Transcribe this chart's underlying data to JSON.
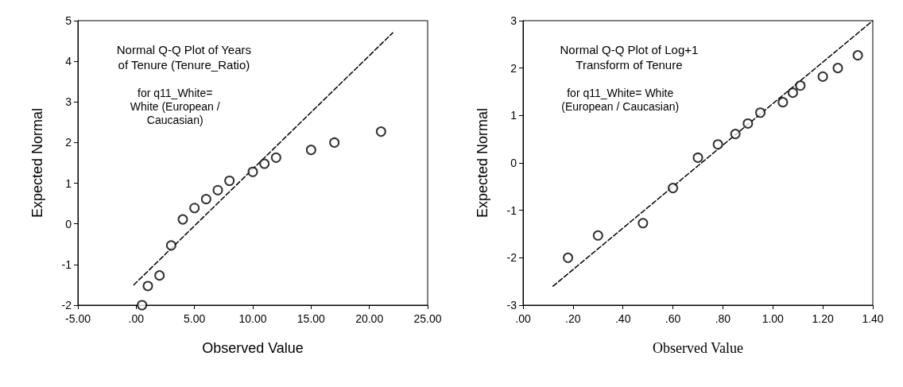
{
  "chart_data": [
    {
      "type": "scatter",
      "title": "Normal Q-Q Plot of Years\nof Tenure (Tenure_Ratio)",
      "subtitle": "for q11_White=\nWhite (European /\nCaucasian)",
      "xlabel": "Observed Value",
      "ylabel": "Expected Normal",
      "xlim": [
        -5,
        25
      ],
      "xticks": [
        {
          "value": -5,
          "label": "-5.00"
        },
        {
          "value": 0,
          "label": ".00"
        },
        {
          "value": 5,
          "label": "5.00"
        },
        {
          "value": 10,
          "label": "10.00"
        },
        {
          "value": 15,
          "label": "15.00"
        },
        {
          "value": 20,
          "label": "20.00"
        },
        {
          "value": 25,
          "label": "25.00"
        }
      ],
      "ylim": [
        -2,
        5
      ],
      "yticks": [
        -2,
        -1,
        0,
        1,
        2,
        3,
        4,
        5
      ],
      "grid": false,
      "marker": "circle",
      "series": [
        {
          "color": "#000000",
          "x": [
            0.5,
            1,
            2,
            3,
            4,
            5,
            6,
            7,
            8,
            10,
            11,
            12,
            15,
            17,
            21
          ],
          "values": [
            -2,
            -1.53,
            -1.27,
            -0.53,
            0.11,
            0.39,
            0.61,
            0.83,
            1.06,
            1.28,
            1.48,
            1.63,
            1.82,
            2,
            2.27
          ]
        },
        {
          "type": "line",
          "color": "#000000",
          "line_style": "dashed",
          "marker": "none",
          "x": [
            -0.2,
            22
          ],
          "values": [
            -1.5,
            4.7
          ]
        }
      ]
    },
    {
      "type": "scatter",
      "title": "Normal Q-Q Plot of Log+1\nTransform of Tenure",
      "subtitle": "for q11_White= White\n(European / Caucasian)",
      "xlabel": "Observed Value",
      "ylabel": "Expected Normal",
      "xlim": [
        0,
        1.4
      ],
      "xticks": [
        {
          "value": 0,
          "label": ".00"
        },
        {
          "value": 0.2,
          "label": ".20"
        },
        {
          "value": 0.4,
          "label": ".40"
        },
        {
          "value": 0.6,
          "label": ".60"
        },
        {
          "value": 0.8,
          "label": ".80"
        },
        {
          "value": 1,
          "label": "1.00"
        },
        {
          "value": 1.2,
          "label": "1.20"
        },
        {
          "value": 1.4,
          "label": "1.40"
        }
      ],
      "ylim": [
        -3,
        3
      ],
      "yticks": [
        -3,
        -2,
        -1,
        0,
        1,
        2,
        3
      ],
      "grid": false,
      "marker": "circle",
      "series": [
        {
          "color": "#000000",
          "x": [
            0.18,
            0.3,
            0.48,
            0.6,
            0.7,
            0.78,
            0.85,
            0.9,
            0.95,
            1.04,
            1.08,
            1.11,
            1.2,
            1.26,
            1.34
          ],
          "values": [
            -2,
            -1.53,
            -1.27,
            -0.53,
            0.11,
            0.39,
            0.61,
            0.83,
            1.06,
            1.28,
            1.48,
            1.63,
            1.82,
            2,
            2.27
          ]
        },
        {
          "type": "line",
          "color": "#000000",
          "line_style": "dashed",
          "marker": "none",
          "x": [
            0.12,
            1.4
          ],
          "values": [
            -2.6,
            3
          ]
        }
      ]
    }
  ]
}
